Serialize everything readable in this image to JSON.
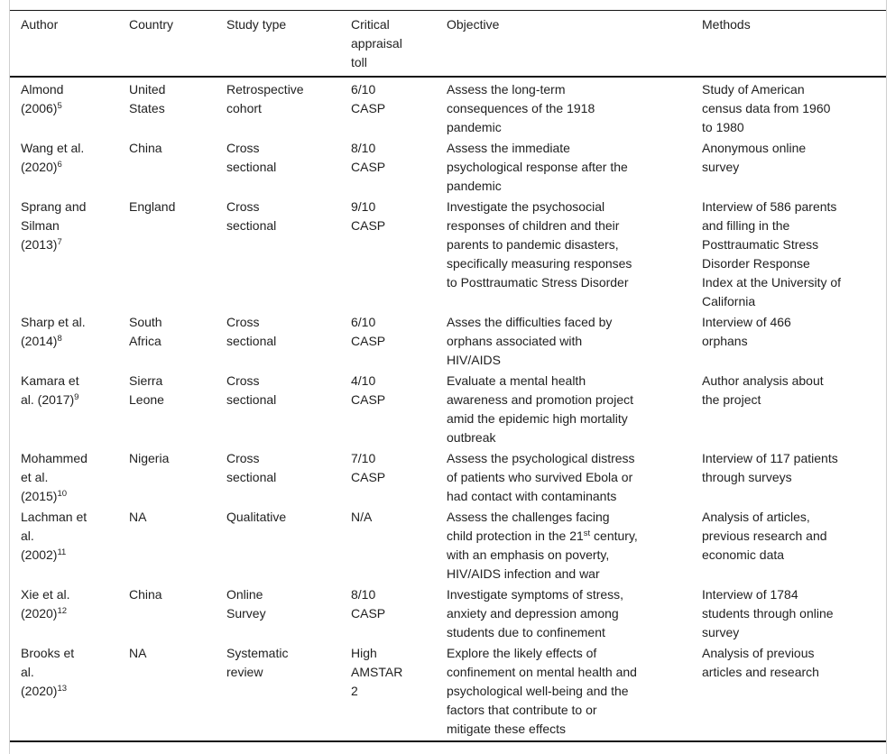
{
  "table": {
    "columns": [
      {
        "key": "author",
        "label": "Author"
      },
      {
        "key": "country",
        "label": "Country"
      },
      {
        "key": "study_type",
        "label": "Study type"
      },
      {
        "key": "appraisal",
        "label": "Critical\nappraisal\ntoll"
      },
      {
        "key": "objective",
        "label": "Objective"
      },
      {
        "key": "methods",
        "label": "Methods"
      }
    ],
    "rows": [
      {
        "author": {
          "text": "Almond\n(2006)",
          "ref": "5"
        },
        "country": "United\nStates",
        "study_type": "Retrospective\ncohort",
        "appraisal": "6/10\nCASP",
        "objective": "Assess the long-term\nconsequences of the 1918\npandemic",
        "methods": "Study of American\ncensus data from 1960\nto 1980"
      },
      {
        "author": {
          "text": "Wang et al.\n(2020)",
          "ref": "6"
        },
        "country": "China",
        "study_type": "Cross\nsectional",
        "appraisal": "8/10\nCASP",
        "objective": "Assess the immediate\npsychological response after the\npandemic",
        "methods": "Anonymous online\nsurvey"
      },
      {
        "author": {
          "text": "Sprang and\nSilman\n(2013)",
          "ref": "7"
        },
        "country": "England",
        "study_type": "Cross\nsectional",
        "appraisal": "9/10\nCASP",
        "objective": "Investigate the psychosocial\nresponses of children and their\nparents to pandemic disasters,\nspecifically measuring responses\nto Posttraumatic Stress Disorder",
        "methods": "Interview of 586 parents\nand filling in the\nPosttraumatic Stress\nDisorder Response\nIndex at the University of\nCalifornia"
      },
      {
        "author": {
          "text": "Sharp et al.\n(2014)",
          "ref": "8"
        },
        "country": "South\nAfrica",
        "study_type": "Cross\nsectional",
        "appraisal": "6/10\nCASP",
        "objective": "Asses the difficulties faced by\norphans associated with\nHIV/AIDS",
        "methods": "Interview of 466\norphans"
      },
      {
        "author": {
          "text": "Kamara et\nal. (2017)",
          "ref": "9"
        },
        "country": "Sierra\nLeone",
        "study_type": "Cross\nsectional",
        "appraisal": "4/10\nCASP",
        "objective": "Evaluate a mental health\nawareness and promotion project\namid the epidemic high mortality\noutbreak",
        "methods": "Author analysis about\nthe project"
      },
      {
        "author": {
          "text": "Mohammed\net al.\n(2015)",
          "ref": "10"
        },
        "country": "Nigeria",
        "study_type": "Cross\nsectional",
        "appraisal": "7/10\nCASP",
        "objective": "Assess the psychological distress\nof patients who survived Ebola or\nhad contact with contaminants",
        "methods": "Interview of 117 patients\nthrough surveys"
      },
      {
        "author": {
          "text": "Lachman et\nal.\n(2002)",
          "ref": "11"
        },
        "country": "NA",
        "study_type": "Qualitative",
        "appraisal": "N/A",
        "objective": {
          "pre": "Assess the challenges facing\nchild protection in the 21",
          "sup": "st",
          "post": " century,\nwith an emphasis on poverty,\nHIV/AIDS infection and war"
        },
        "methods": "Analysis of articles,\nprevious research and\neconomic data"
      },
      {
        "author": {
          "text": "Xie et al.\n(2020)",
          "ref": "12"
        },
        "country": "China",
        "study_type": "Online\nSurvey",
        "appraisal": "8/10\nCASP",
        "objective": "Investigate symptoms of stress,\nanxiety and depression among\nstudents due to confinement",
        "methods": "Interview of 1784\nstudents through online\nsurvey"
      },
      {
        "author": {
          "text": "Brooks et\nal.\n(2020)",
          "ref": "13"
        },
        "country": "NA",
        "study_type": "Systematic\nreview",
        "appraisal": "High\nAMSTAR\n2",
        "objective": "Explore the likely effects of\nconfinement on mental health and\npsychological well-being and the\nfactors that contribute to or\nmitigate these effects",
        "methods": "Analysis of previous\narticles and research"
      }
    ]
  }
}
